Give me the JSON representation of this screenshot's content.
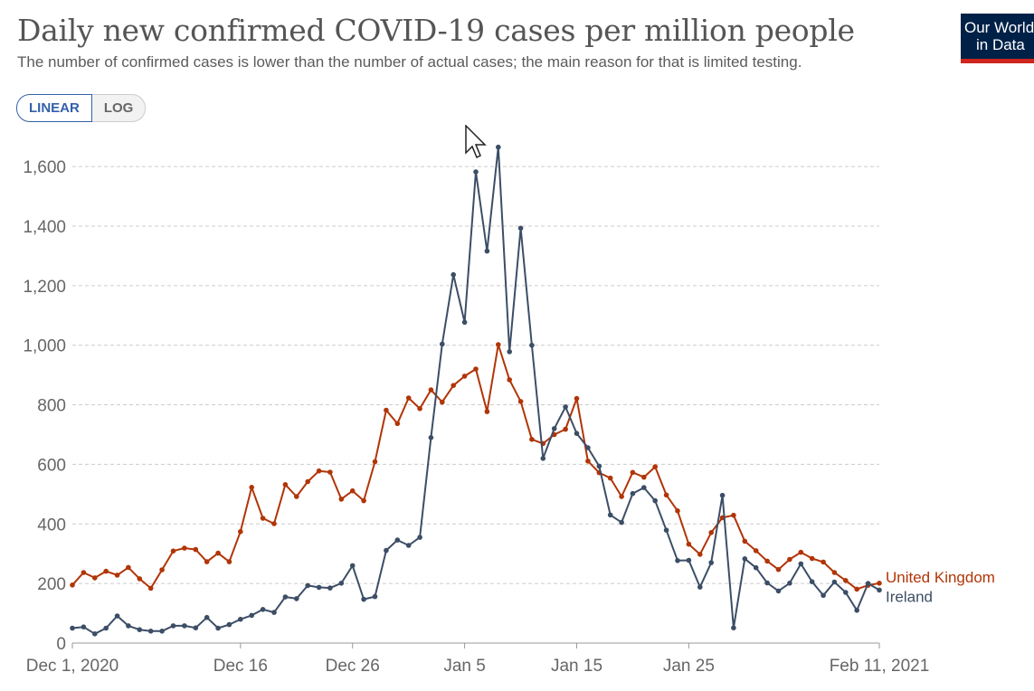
{
  "header": {
    "title": "Daily new confirmed COVID-19 cases per million people",
    "subtitle": "The number of confirmed cases is lower than the number of actual cases; the main reason for that is limited testing."
  },
  "logo": {
    "line1": "Our World",
    "line2": "in Data"
  },
  "scale_toggle": {
    "linear_label": "LINEAR",
    "log_label": "LOG",
    "selected": "LINEAR"
  },
  "chart_data": {
    "type": "line",
    "x_start": "Dec 1, 2020",
    "x_end": "Feb 11, 2021",
    "xticks": [
      {
        "label": "Dec 1, 2020",
        "day": 0
      },
      {
        "label": "Dec 16",
        "day": 15
      },
      {
        "label": "Dec 26",
        "day": 25
      },
      {
        "label": "Jan 5",
        "day": 35
      },
      {
        "label": "Jan 15",
        "day": 45
      },
      {
        "label": "Jan 25",
        "day": 55
      },
      {
        "label": "Feb 11, 2021",
        "day": 72
      }
    ],
    "ylim": [
      0,
      1700
    ],
    "yticks": [
      {
        "value": 0,
        "label": "0"
      },
      {
        "value": 200,
        "label": "200"
      },
      {
        "value": 400,
        "label": "400"
      },
      {
        "value": 600,
        "label": "600"
      },
      {
        "value": 800,
        "label": "800"
      },
      {
        "value": 1000,
        "label": "1,000"
      },
      {
        "value": 1200,
        "label": "1,200"
      },
      {
        "value": 1400,
        "label": "1,400"
      },
      {
        "value": 1600,
        "label": "1,600"
      }
    ],
    "grid": "horizontal dashed",
    "legend": "inline labels at right end of lines",
    "series": [
      {
        "name": "United Kingdom",
        "color": "#b13507",
        "values": [
          195,
          237,
          219,
          241,
          228,
          254,
          216,
          184,
          246,
          309,
          319,
          314,
          273,
          302,
          273,
          374,
          523,
          419,
          401,
          532,
          492,
          542,
          578,
          574,
          483,
          511,
          478,
          609,
          782,
          737,
          823,
          787,
          850,
          809,
          865,
          896,
          920,
          777,
          1002,
          884,
          811,
          684,
          670,
          700,
          718,
          821,
          611,
          572,
          554,
          492,
          573,
          557,
          592,
          497,
          444,
          332,
          298,
          371,
          421,
          429,
          342,
          310,
          275,
          247,
          281,
          305,
          284,
          272,
          237,
          210,
          181,
          194,
          201
        ]
      },
      {
        "name": "Ireland",
        "color": "#3c4e66",
        "values": [
          50,
          54,
          31,
          50,
          91,
          58,
          45,
          40,
          40,
          58,
          58,
          51,
          86,
          50,
          62,
          80,
          93,
          113,
          103,
          155,
          149,
          193,
          187,
          185,
          201,
          260,
          147,
          156,
          311,
          346,
          328,
          355,
          690,
          1004,
          1237,
          1077,
          1582,
          1316,
          1665,
          978,
          1393,
          1000,
          620,
          720,
          793,
          704,
          656,
          594,
          430,
          405,
          502,
          522,
          478,
          379,
          277,
          278,
          188,
          270,
          496,
          51,
          283,
          253,
          202,
          175,
          201,
          266,
          206,
          160,
          205,
          170,
          110,
          200,
          178
        ]
      }
    ]
  }
}
